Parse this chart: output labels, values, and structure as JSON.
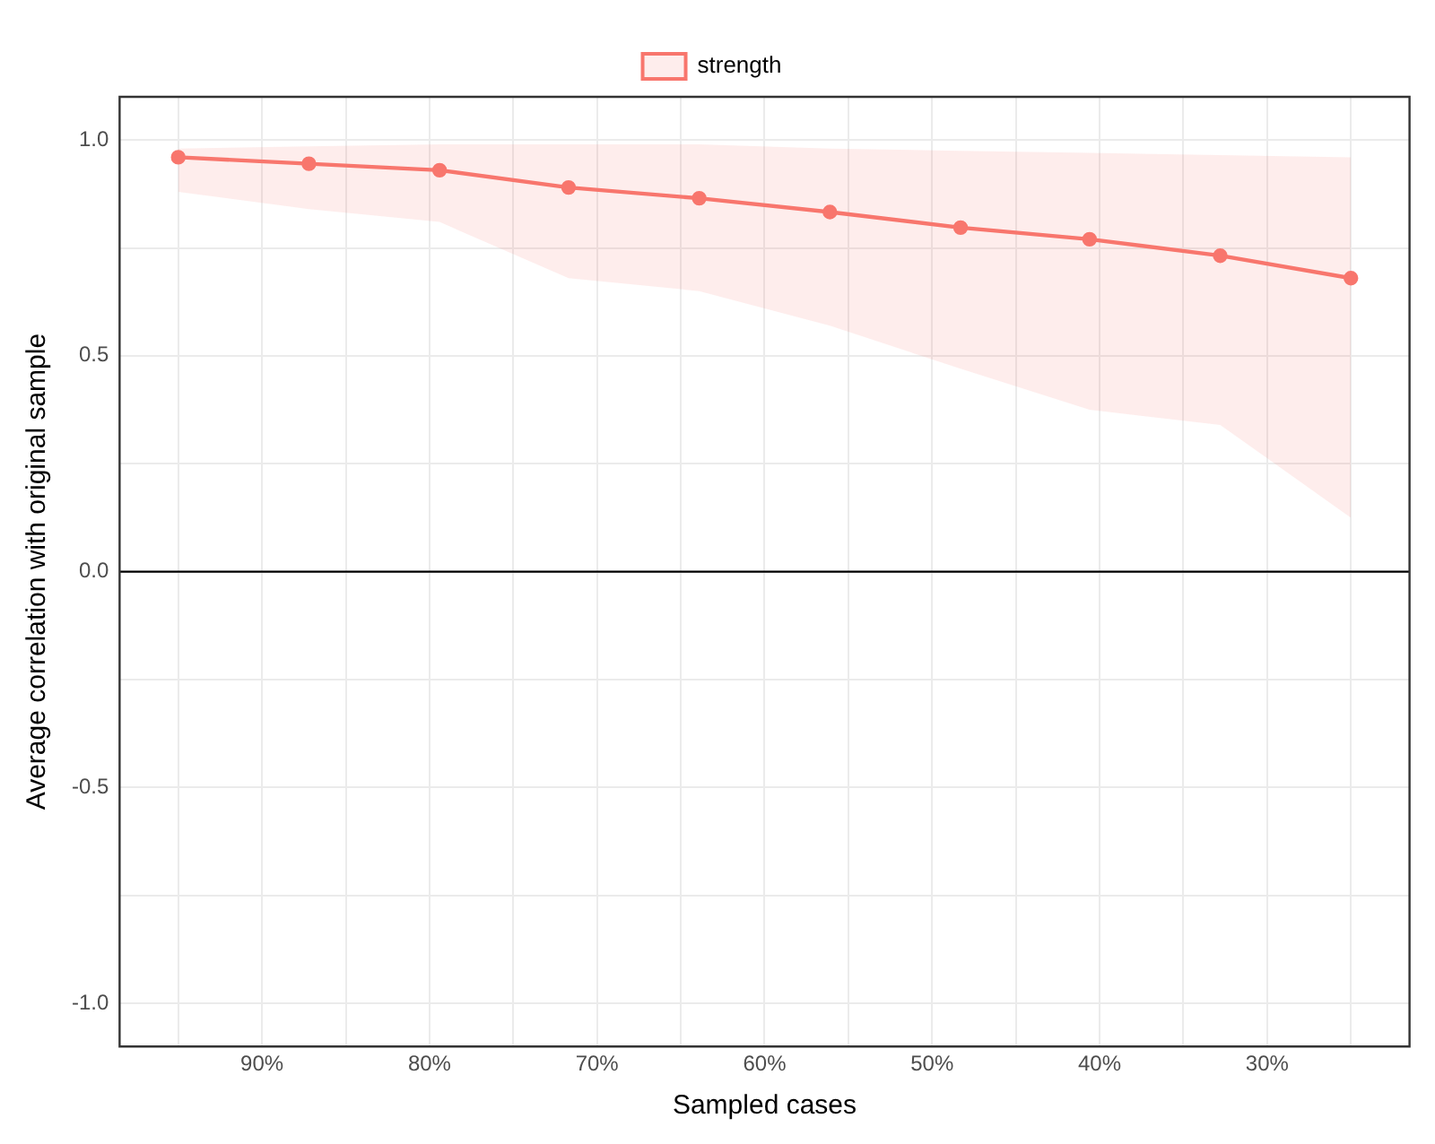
{
  "chart_data": {
    "type": "line",
    "xlabel": "Sampled cases",
    "ylabel": "Average correlation with original sample",
    "x": [
      95,
      87.2,
      79.4,
      71.7,
      63.9,
      56.1,
      48.3,
      40.6,
      32.8,
      25
    ],
    "series": [
      {
        "name": "strength",
        "color": "#f8766d",
        "values": [
          0.96,
          0.945,
          0.93,
          0.89,
          0.865,
          0.833,
          0.797,
          0.77,
          0.732,
          0.68
        ],
        "lower": [
          0.88,
          0.84,
          0.81,
          0.68,
          0.65,
          0.57,
          0.47,
          0.375,
          0.34,
          0.125
        ],
        "upper": [
          0.98,
          0.985,
          0.99,
          0.99,
          0.99,
          0.98,
          0.975,
          0.97,
          0.965,
          0.96
        ]
      }
    ],
    "xlim": [
      98.5,
      21.5
    ],
    "xticks": [
      {
        "value": 95,
        "label": null
      },
      {
        "value": 90,
        "label": "90%"
      },
      {
        "value": 85,
        "label": null
      },
      {
        "value": 80,
        "label": "80%"
      },
      {
        "value": 75,
        "label": null
      },
      {
        "value": 70,
        "label": "70%"
      },
      {
        "value": 65,
        "label": null
      },
      {
        "value": 60,
        "label": "60%"
      },
      {
        "value": 55,
        "label": null
      },
      {
        "value": 50,
        "label": "50%"
      },
      {
        "value": 45,
        "label": null
      },
      {
        "value": 40,
        "label": "40%"
      },
      {
        "value": 35,
        "label": null
      },
      {
        "value": 30,
        "label": "30%"
      },
      {
        "value": 25,
        "label": null
      }
    ],
    "ylim": [
      -1.1,
      1.1
    ],
    "yticks": [
      {
        "value": -1,
        "label": "-1.0"
      },
      {
        "value": -0.75,
        "label": null
      },
      {
        "value": -0.5,
        "label": "-0.5"
      },
      {
        "value": -0.25,
        "label": null
      },
      {
        "value": 0,
        "label": "0.0"
      },
      {
        "value": 0.25,
        "label": null
      },
      {
        "value": 0.5,
        "label": "0.5"
      },
      {
        "value": 0.75,
        "label": null
      },
      {
        "value": 1,
        "label": "1.0"
      }
    ],
    "ref_lines": [
      {
        "axis": "y",
        "value": 0,
        "color": "#000000"
      }
    ],
    "grid": true,
    "legend": "top",
    "marker": "circle",
    "line_style": "solid"
  }
}
